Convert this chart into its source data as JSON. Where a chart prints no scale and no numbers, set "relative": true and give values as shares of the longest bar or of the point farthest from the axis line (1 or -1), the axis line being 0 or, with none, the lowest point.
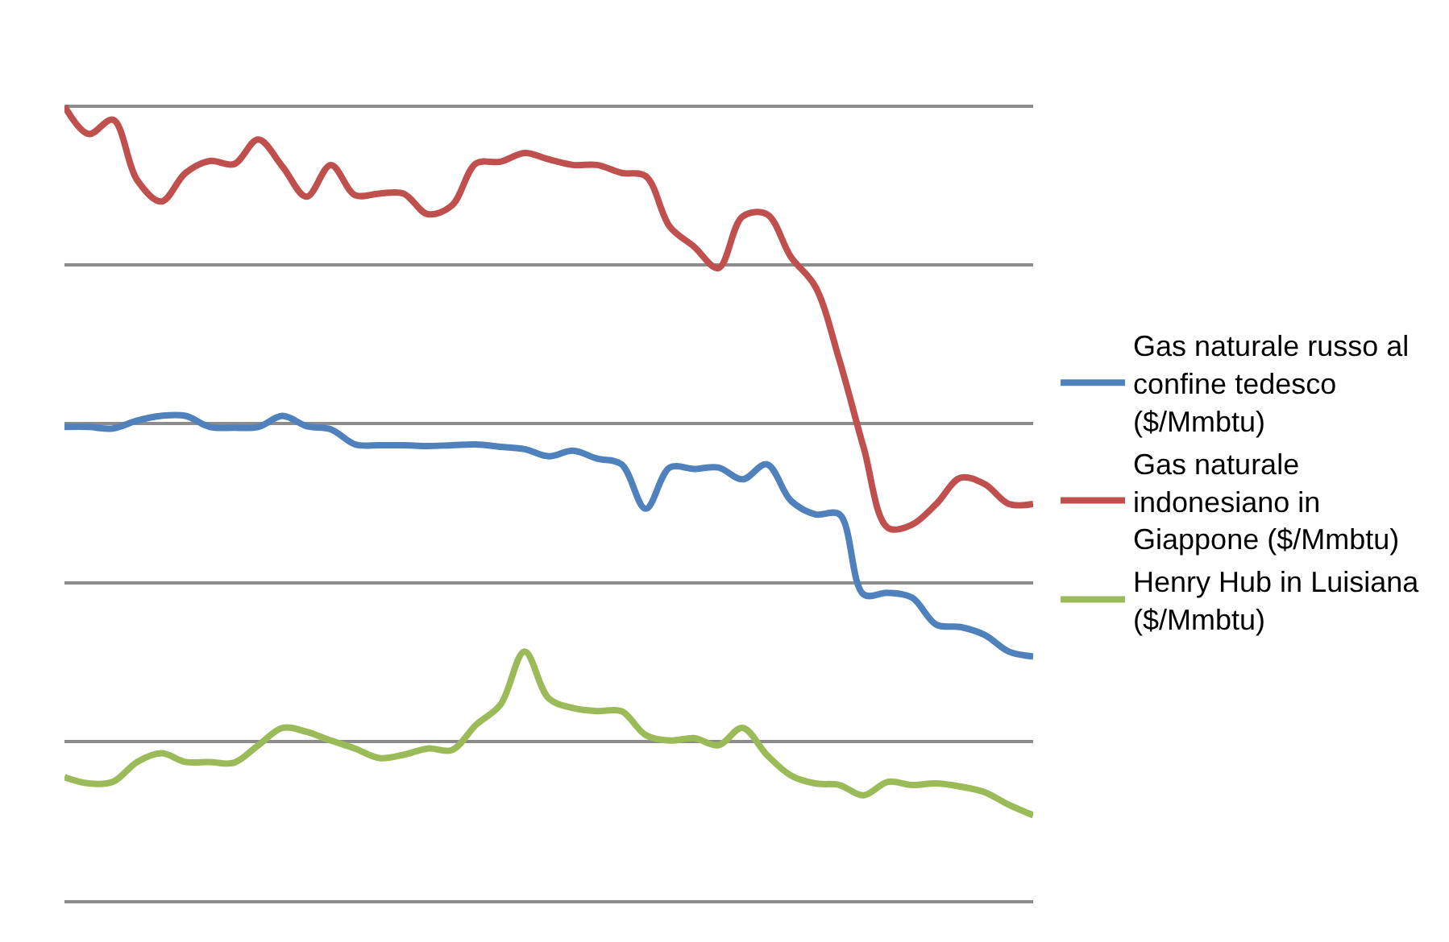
{
  "chart_data": {
    "type": "line",
    "relative": true,
    "grid": "y",
    "legend": "right",
    "line_style": "solid",
    "categories": [
      null,
      null,
      null,
      null,
      null,
      null,
      null,
      null,
      null,
      null,
      null,
      null,
      null,
      null,
      null,
      null,
      null,
      null,
      null,
      null,
      null,
      null,
      null,
      null,
      null,
      null,
      null,
      null,
      null,
      null,
      null,
      null,
      null,
      null,
      null,
      null,
      null,
      null,
      null,
      null,
      null
    ],
    "series": [
      {
        "name": "Gas naturale russo al confine tedesco ($/Mmbtu)",
        "color": "#4f81bd",
        "values": [
          0.596,
          0.596,
          0.594,
          0.604,
          0.61,
          0.61,
          0.596,
          0.595,
          0.596,
          0.61,
          0.597,
          0.593,
          0.574,
          0.573,
          0.573,
          0.572,
          0.573,
          0.574,
          0.571,
          0.568,
          0.559,
          0.566,
          0.556,
          0.549,
          0.493,
          0.545,
          0.543,
          0.545,
          0.53,
          0.549,
          0.503,
          0.486,
          0.486,
          0.385,
          0.387,
          0.381,
          0.347,
          0.344,
          0.334,
          0.313,
          0.307
        ]
      },
      {
        "name": "Gas naturale indonesiano in Giappone ($/Mmbtu)",
        "color": "#c0504d",
        "values": [
          1.0,
          0.965,
          0.983,
          0.907,
          0.88,
          0.916,
          0.931,
          0.927,
          0.958,
          0.924,
          0.886,
          0.926,
          0.888,
          0.89,
          0.89,
          0.864,
          0.875,
          0.928,
          0.93,
          0.941,
          0.933,
          0.926,
          0.926,
          0.916,
          0.912,
          0.848,
          0.823,
          0.796,
          0.861,
          0.864,
          0.81,
          0.773,
          0.68,
          0.57,
          0.469,
          0.473,
          0.499,
          0.532,
          0.524,
          0.499,
          0.499
        ]
      },
      {
        "name": "Henry Hub in Luisiana ($/Mmbtu)",
        "color": "#9bbb59",
        "values": [
          0.155,
          0.147,
          0.149,
          0.174,
          0.185,
          0.174,
          0.174,
          0.173,
          0.195,
          0.217,
          0.212,
          0.201,
          0.191,
          0.179,
          0.183,
          0.191,
          0.189,
          0.221,
          0.246,
          0.313,
          0.254,
          0.242,
          0.238,
          0.238,
          0.208,
          0.201,
          0.204,
          0.195,
          0.217,
          0.183,
          0.157,
          0.147,
          0.145,
          0.132,
          0.149,
          0.145,
          0.147,
          0.143,
          0.136,
          0.12,
          0.107
        ]
      }
    ]
  }
}
